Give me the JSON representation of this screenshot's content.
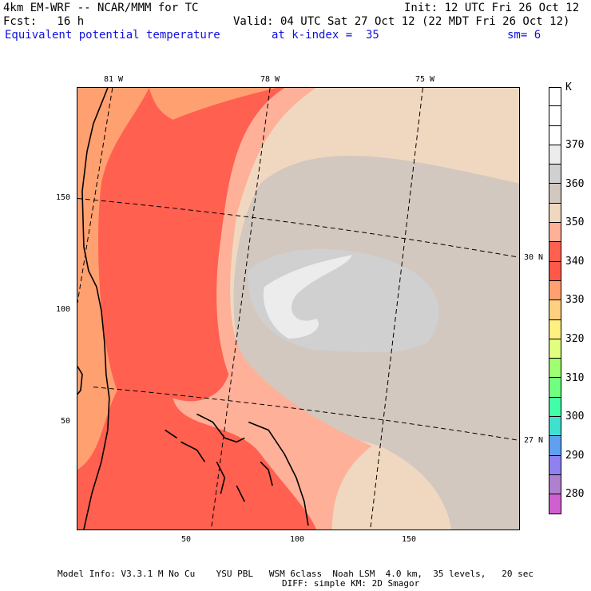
{
  "header": {
    "title": "4km EM-WRF -- NCAR/MMM for TC",
    "init": "Init: 12 UTC Fri 26 Oct 12",
    "fcst": "Fcst:   16 h",
    "valid": "Valid: 04 UTC Sat 27 Oct 12 (22 MDT Fri 26 Oct 12)",
    "field": "Equivalent potential temperature",
    "level": "at k-index =  35",
    "smooth": "sm= 6"
  },
  "axes": {
    "top": [
      "81 W",
      "78 W",
      "75 W"
    ],
    "right": [
      "30 N",
      "27 N"
    ],
    "bottom": [
      "50",
      "100",
      "150"
    ],
    "left": [
      "150",
      "100",
      "50"
    ]
  },
  "colorbar": {
    "unit": "K",
    "labels": [
      "370",
      "360",
      "350",
      "340",
      "330",
      "320",
      "310",
      "300",
      "290",
      "280"
    ],
    "colors": [
      "#ffffff",
      "#ffffff",
      "#ffffff",
      "#ececec",
      "#d0d0d0",
      "#d2c8c0",
      "#f0d8c0",
      "#ffb098",
      "#ff6050",
      "#ff5848",
      "#ffa070",
      "#ffd080",
      "#fff080",
      "#e0ff80",
      "#a0ff70",
      "#70ff80",
      "#40ffa8",
      "#40e0d0",
      "#60a0f0",
      "#9080f0",
      "#b080d0",
      "#d060d0"
    ]
  },
  "footer": {
    "line1": "Model Info: V3.3.1 M No Cu    YSU PBL   WSM 6class  Noah LSM  4.0 km,  35 levels,   20 sec",
    "line2": "DIFF: simple KM: 2D Smagor"
  }
}
